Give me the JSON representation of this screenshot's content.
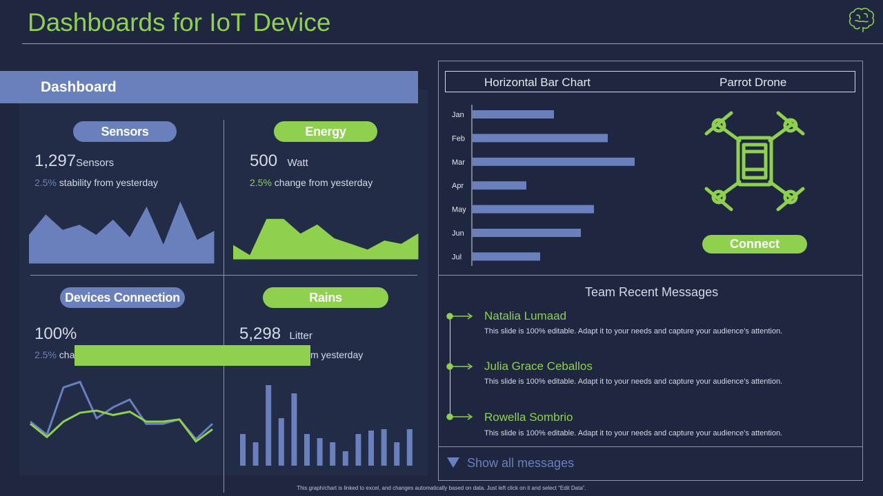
{
  "header": {
    "title": "Dashboards for IoT Device"
  },
  "dashboard": {
    "banner": "Dashboard",
    "sensors": {
      "label": "Sensors",
      "value": "1,297",
      "unit": "Sensors",
      "pct": "2.5%",
      "note": " stability from yesterday",
      "chart_values": [
        22,
        38,
        26,
        30,
        22,
        34,
        20,
        44,
        14,
        48,
        18,
        25
      ]
    },
    "energy": {
      "label": "Energy",
      "value": "500",
      "unit": "Watt",
      "pct": "2.5%",
      "note": " change from yesterday",
      "chart_values": [
        12,
        3,
        35,
        35,
        22,
        30,
        18,
        13,
        8,
        16,
        13,
        22
      ]
    },
    "devices": {
      "label": "Devices Connection",
      "value": "100%",
      "pct": "2.5%",
      "note": " cha",
      "series_a": [
        12,
        0,
        43,
        48,
        15,
        25,
        32,
        10,
        10,
        14,
        -4,
        10
      ],
      "series_b": [
        10,
        -2,
        12,
        20,
        22,
        18,
        21,
        12,
        12,
        14,
        -6,
        5
      ]
    },
    "rains": {
      "label": "Rains",
      "value": "5,298",
      "unit": "Litter",
      "note": "m yesterday",
      "bars": [
        46,
        34,
        117,
        69,
        105,
        46,
        40,
        34,
        21,
        46,
        51,
        53,
        34,
        53
      ]
    }
  },
  "bar_chart": {
    "header": "Horizontal  Bar Chart",
    "categories": [
      "Jan",
      "Feb",
      "Mar",
      "Apr",
      "May",
      "Jun",
      "Jul"
    ],
    "values": [
      118,
      196,
      235,
      78,
      176,
      157,
      98
    ]
  },
  "drone": {
    "header": "Parrot Drone",
    "icon": "drone-icon",
    "connect": "Connect"
  },
  "messages": {
    "title": "Team Recent Messages",
    "items": [
      {
        "name": "Natalia Lumaad",
        "body": "This slide is 100% editable. Adapt  it to your needs and capture your audience’s attention."
      },
      {
        "name": "Julia Grace Ceballos",
        "body": "This slide is 100% editable. Adapt  it to your needs and capture your audience’s attention."
      },
      {
        "name": "Rowella Sombrio",
        "body": "This slide is 100% editable. Adapt  it to your needs and capture your audience’s attention."
      }
    ],
    "show_all": "Show all messages"
  },
  "footer": {
    "note": "This graph/chart  is linked to excel, and changes automatically based on data. Just left click on it and select “Edit Data”."
  },
  "colors": {
    "accent_green": "#8fd14f",
    "accent_blue": "#6a80bd",
    "background": "#1e2640"
  },
  "chart_data": [
    {
      "type": "area",
      "x": [
        1,
        2,
        3,
        4,
        5,
        6,
        7,
        8,
        9,
        10,
        11,
        12
      ],
      "values": [
        22,
        38,
        26,
        30,
        22,
        34,
        20,
        44,
        14,
        48,
        18,
        25
      ]
    },
    {
      "type": "area",
      "x": [
        1,
        2,
        3,
        4,
        5,
        6,
        7,
        8,
        9,
        10,
        11,
        12
      ],
      "values": [
        12,
        3,
        35,
        35,
        22,
        30,
        18,
        13,
        8,
        16,
        13,
        22
      ]
    },
    {
      "type": "line",
      "x": [
        1,
        2,
        3,
        4,
        5,
        6,
        7,
        8,
        9,
        10,
        11,
        12
      ],
      "series": [
        {
          "values": [
            12,
            0,
            43,
            48,
            15,
            25,
            32,
            10,
            10,
            14,
            -4,
            10
          ]
        },
        {
          "values": [
            10,
            -2,
            12,
            20,
            22,
            18,
            21,
            12,
            12,
            14,
            -6,
            5
          ]
        }
      ]
    },
    {
      "type": "bar",
      "values": [
        46,
        34,
        117,
        69,
        105,
        46,
        40,
        34,
        21,
        46,
        51,
        53,
        34,
        53
      ]
    },
    {
      "type": "bar",
      "categories": [
        "Jan",
        "Feb",
        "Mar",
        "Apr",
        "May",
        "Jun",
        "Jul"
      ],
      "values": [
        118,
        196,
        235,
        78,
        176,
        157,
        98
      ]
    }
  ]
}
